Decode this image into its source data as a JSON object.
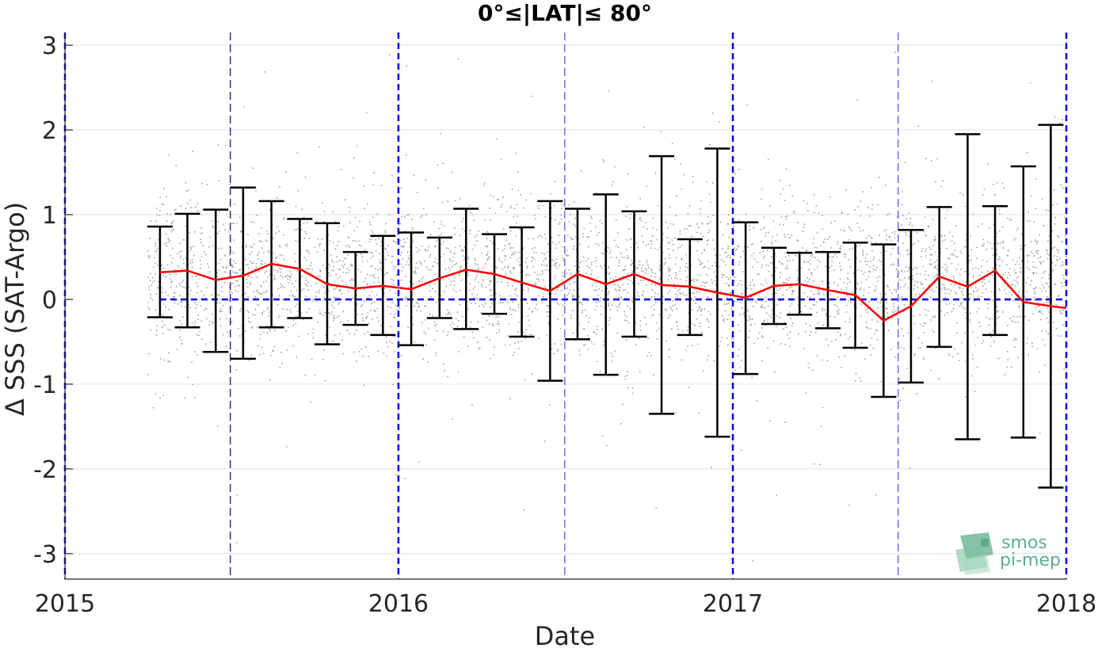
{
  "chart_data": {
    "type": "scatter",
    "title": "0°≤|LAT|≤ 80°",
    "xlabel": "Date",
    "ylabel": "Δ SSS (SAT-Argo)",
    "xlim": [
      "2015-01-01",
      "2018-01-01"
    ],
    "ylim": [
      -3.3,
      3.15
    ],
    "x_ticks": [
      {
        "value": "2015-01-01",
        "label": "2015"
      },
      {
        "value": "2016-01-01",
        "label": "2016"
      },
      {
        "value": "2017-01-01",
        "label": "2017"
      },
      {
        "value": "2018-01-01",
        "label": "2018"
      }
    ],
    "y_ticks": [
      {
        "value": 3,
        "label": "3"
      },
      {
        "value": 2,
        "label": "2"
      },
      {
        "value": 1,
        "label": "1"
      },
      {
        "value": 0,
        "label": "0"
      },
      {
        "value": -1,
        "label": "-1"
      },
      {
        "value": -2,
        "label": "-2"
      },
      {
        "value": -3,
        "label": "-3"
      }
    ],
    "grid": true,
    "zero_line": {
      "y": 0,
      "color": "#0000ee",
      "style": "dashed"
    },
    "year_lines": {
      "dates": [
        "2015-01-01",
        "2016-01-01",
        "2017-01-01",
        "2018-01-01"
      ],
      "color": "#0000ee",
      "style": "dashed"
    },
    "midyear_lines": [
      {
        "date": "2015-07-01",
        "color": "#000080"
      },
      {
        "date": "2016-07-01",
        "color": "#4a4aff"
      },
      {
        "date": "2017-07-01",
        "color": "#4a4aff"
      }
    ],
    "series": [
      {
        "marker": "errorbar",
        "color": "#ff0000",
        "errorbar_color": "#000000",
        "points": [
          {
            "date": "2015-04-15",
            "mean": 0.32,
            "lower": -0.21,
            "upper": 0.86
          },
          {
            "date": "2015-05-15",
            "mean": 0.34,
            "lower": -0.33,
            "upper": 1.01
          },
          {
            "date": "2015-06-15",
            "mean": 0.23,
            "lower": -0.62,
            "upper": 1.06
          },
          {
            "date": "2015-07-15",
            "mean": 0.28,
            "lower": -0.7,
            "upper": 1.32
          },
          {
            "date": "2015-08-15",
            "mean": 0.42,
            "lower": -0.33,
            "upper": 1.16
          },
          {
            "date": "2015-09-15",
            "mean": 0.36,
            "lower": -0.22,
            "upper": 0.95
          },
          {
            "date": "2015-10-15",
            "mean": 0.18,
            "lower": -0.53,
            "upper": 0.9
          },
          {
            "date": "2015-11-15",
            "mean": 0.13,
            "lower": -0.3,
            "upper": 0.56
          },
          {
            "date": "2015-12-15",
            "mean": 0.16,
            "lower": -0.42,
            "upper": 0.75
          },
          {
            "date": "2016-01-15",
            "mean": 0.12,
            "lower": -0.54,
            "upper": 0.79
          },
          {
            "date": "2016-02-15",
            "mean": 0.25,
            "lower": -0.22,
            "upper": 0.73
          },
          {
            "date": "2016-03-15",
            "mean": 0.35,
            "lower": -0.35,
            "upper": 1.07
          },
          {
            "date": "2016-04-15",
            "mean": 0.3,
            "lower": -0.17,
            "upper": 0.77
          },
          {
            "date": "2016-05-15",
            "mean": 0.2,
            "lower": -0.44,
            "upper": 0.85
          },
          {
            "date": "2016-06-15",
            "mean": 0.1,
            "lower": -0.96,
            "upper": 1.16
          },
          {
            "date": "2016-07-15",
            "mean": 0.3,
            "lower": -0.47,
            "upper": 1.07
          },
          {
            "date": "2016-08-15",
            "mean": 0.18,
            "lower": -0.89,
            "upper": 1.24
          },
          {
            "date": "2016-09-15",
            "mean": 0.3,
            "lower": -0.44,
            "upper": 1.04
          },
          {
            "date": "2016-10-15",
            "mean": 0.17,
            "lower": -1.35,
            "upper": 1.69
          },
          {
            "date": "2016-11-15",
            "mean": 0.15,
            "lower": -0.42,
            "upper": 0.71
          },
          {
            "date": "2016-12-15",
            "mean": 0.08,
            "lower": -1.62,
            "upper": 1.78
          },
          {
            "date": "2017-01-15",
            "mean": 0.02,
            "lower": -0.88,
            "upper": 0.91
          },
          {
            "date": "2017-02-15",
            "mean": 0.16,
            "lower": -0.29,
            "upper": 0.61
          },
          {
            "date": "2017-03-15",
            "mean": 0.18,
            "lower": -0.18,
            "upper": 0.55
          },
          {
            "date": "2017-04-15",
            "mean": 0.11,
            "lower": -0.34,
            "upper": 0.56
          },
          {
            "date": "2017-05-15",
            "mean": 0.05,
            "lower": -0.57,
            "upper": 0.67
          },
          {
            "date": "2017-06-15",
            "mean": -0.25,
            "lower": -1.15,
            "upper": 0.65
          },
          {
            "date": "2017-07-15",
            "mean": -0.08,
            "lower": -0.98,
            "upper": 0.82
          },
          {
            "date": "2017-08-15",
            "mean": 0.27,
            "lower": -0.56,
            "upper": 1.09
          },
          {
            "date": "2017-09-15",
            "mean": 0.15,
            "lower": -1.65,
            "upper": 1.95
          },
          {
            "date": "2017-10-15",
            "mean": 0.34,
            "lower": -0.42,
            "upper": 1.1
          },
          {
            "date": "2017-11-15",
            "mean": -0.03,
            "lower": -1.63,
            "upper": 1.57
          },
          {
            "date": "2017-12-15",
            "mean": -0.08,
            "lower": -2.22,
            "upper": 2.06
          },
          {
            "date": "2018-01-01",
            "mean": -0.1
          }
        ]
      }
    ],
    "background_scatter": {
      "color": "#808080",
      "description": "individual SAT-Argo differences, dense grey dots from 2015-04 to 2018-01",
      "x_range": [
        "2015-04-01",
        "2018-01-01"
      ],
      "center": 0.25,
      "spread": 0.45
    }
  },
  "logo": {
    "line1": "smos",
    "line2": "pi-mep",
    "color": "#5fae8c"
  }
}
